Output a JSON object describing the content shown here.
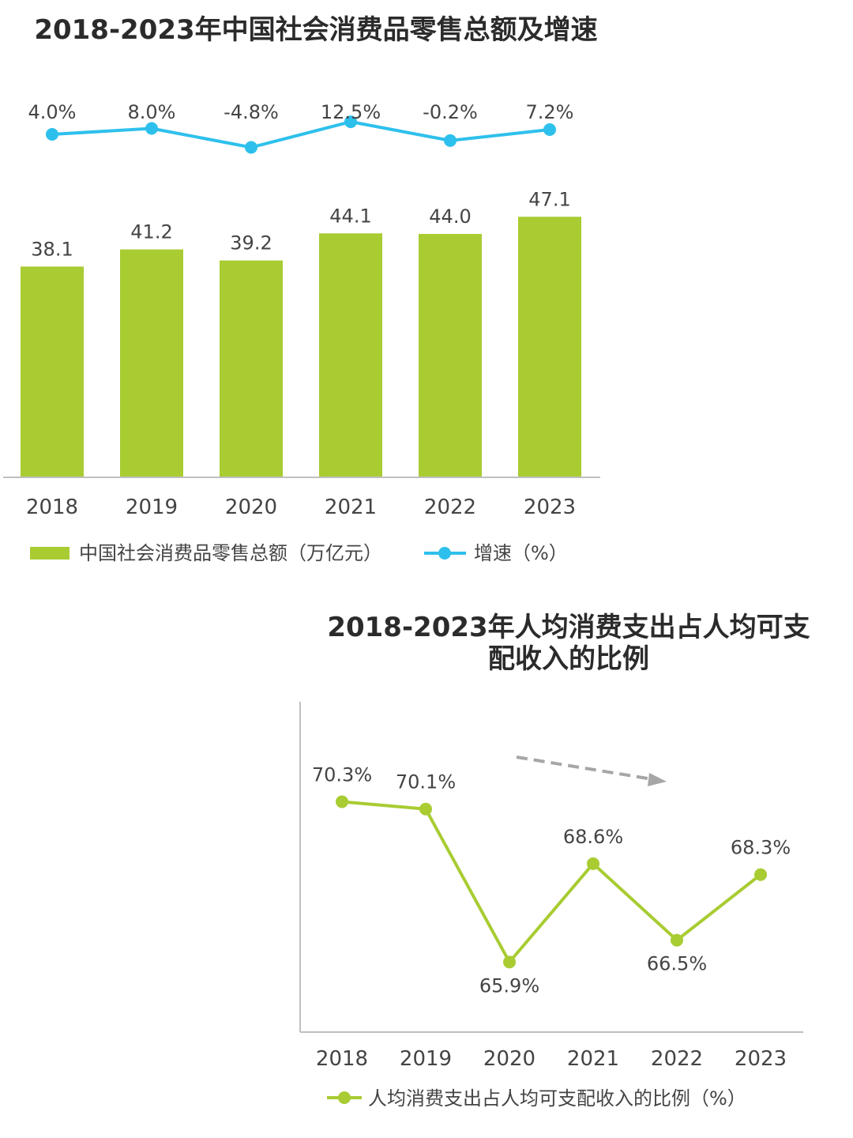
{
  "chart_data": [
    {
      "type": "bar",
      "title": "2018-2023年中国社会消费品零售总额及增速",
      "categories": [
        "2018",
        "2019",
        "2020",
        "2021",
        "2022",
        "2023"
      ],
      "series": [
        {
          "name": "中国社会消费品零售总额（万亿元）",
          "type": "bar",
          "values": [
            38.1,
            41.2,
            39.2,
            44.1,
            44.0,
            47.1
          ],
          "labels": [
            "38.1",
            "41.2",
            "39.2",
            "44.1",
            "44.0",
            "47.1"
          ]
        },
        {
          "name": "增速（%）",
          "type": "line",
          "values": [
            4.0,
            8.0,
            -4.8,
            12.5,
            -0.2,
            7.2
          ],
          "labels": [
            "4.0%",
            "8.0%",
            "-4.8%",
            "12.5%",
            "-0.2%",
            "7.2%"
          ]
        }
      ],
      "ylim": [
        0,
        60
      ],
      "legend": "bottom",
      "grid": false,
      "colors": {
        "bar": "#a8cc32",
        "line": "#2ec0ec"
      }
    },
    {
      "type": "line",
      "title": "2018-2023年人均消费支出占人均可支配收入的比例",
      "categories": [
        "2018",
        "2019",
        "2020",
        "2021",
        "2022",
        "2023"
      ],
      "series": [
        {
          "name": "人均消费支出占人均可支配收入的比例（%）",
          "values": [
            70.3,
            70.1,
            65.9,
            68.6,
            66.5,
            68.3
          ],
          "labels": [
            "70.3%",
            "70.1%",
            "65.9%",
            "68.6%",
            "66.5%",
            "68.3%"
          ]
        }
      ],
      "ylim": [
        64,
        73
      ],
      "legend": "bottom",
      "grid": false,
      "annotation": "dashed-downward-trend-arrow",
      "colors": {
        "line": "#a8cc32",
        "arrow": "#a6a6a6"
      }
    }
  ]
}
